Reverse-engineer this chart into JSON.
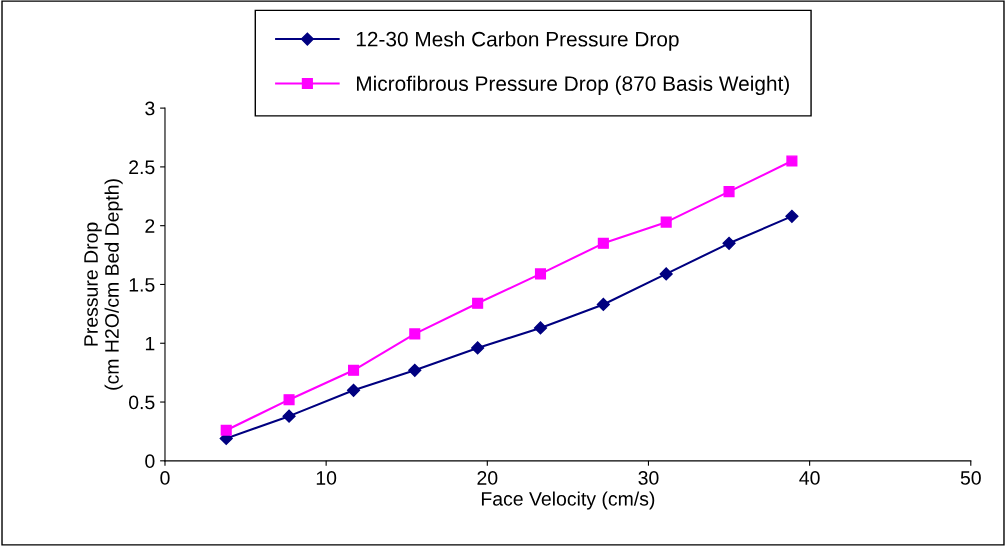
{
  "chart_data": {
    "type": "line",
    "xlabel": "Face Velocity (cm/s)",
    "ylabel": "Pressure Drop\n(cm H2O/cm Bed Depth)",
    "x": [
      3.8,
      7.7,
      11.7,
      15.5,
      19.4,
      23.3,
      27.2,
      31.1,
      35.0,
      38.9
    ],
    "series": [
      {
        "name": "12-30 Mesh Carbon Pressure Drop",
        "color": "#000080",
        "marker": "diamond",
        "values": [
          0.19,
          0.38,
          0.6,
          0.77,
          0.96,
          1.13,
          1.33,
          1.59,
          1.85,
          2.08
        ]
      },
      {
        "name": "Microfibrous Pressure Drop (870 Basis Weight)",
        "color": "#ff00ff",
        "marker": "square",
        "values": [
          0.26,
          0.52,
          0.77,
          1.08,
          1.34,
          1.59,
          1.85,
          2.03,
          2.29,
          2.55
        ]
      }
    ],
    "xlim": [
      0,
      50
    ],
    "xticks": [
      0,
      10,
      20,
      30,
      40,
      50
    ],
    "ylim": [
      0,
      3
    ],
    "yticks": [
      0,
      0.5,
      1,
      1.5,
      2,
      2.5,
      3
    ],
    "grid": false,
    "legend": "top",
    "line_style": "solid"
  }
}
